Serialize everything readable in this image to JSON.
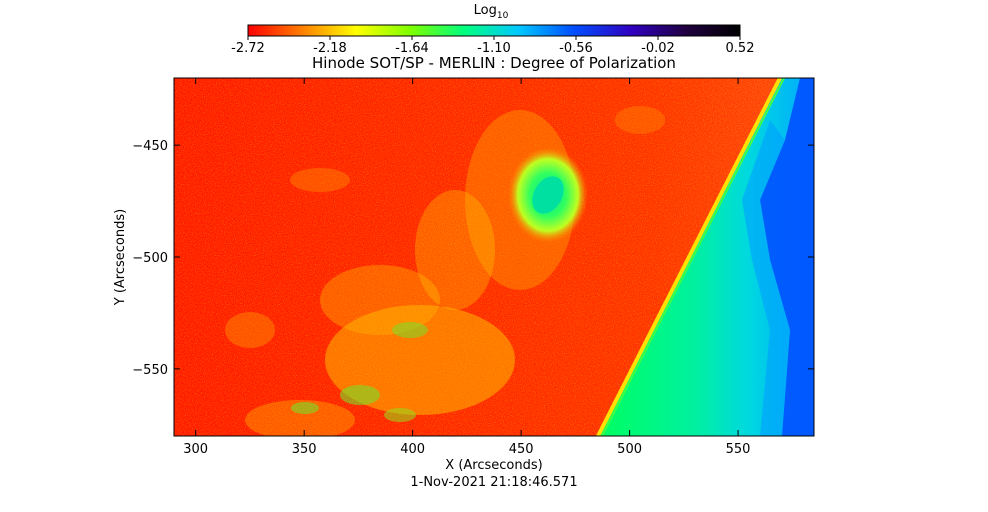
{
  "chart_data": {
    "type": "heatmap",
    "title": "Hinode SOT/SP - MERLIN : Degree of Polarization",
    "xlabel": "X (Arcseconds)",
    "ylabel": "Y (Arcseconds)",
    "timestamp": "1-Nov-2021 21:18:46.571",
    "xlim": [
      290,
      585
    ],
    "ylim": [
      -580,
      -420
    ],
    "x_ticks": [
      300,
      350,
      400,
      450,
      500,
      550
    ],
    "y_ticks": [
      -450,
      -500,
      -550
    ],
    "colorbar": {
      "label_base": "Log",
      "label_sub": "10",
      "range": [
        -2.72,
        0.52
      ],
      "tick_labels": [
        "-2.72",
        "-2.18",
        "-1.64",
        "-1.10",
        "-0.56",
        "-0.02",
        "0.52"
      ],
      "colormap": [
        "#ff0000",
        "#ff7f00",
        "#ffff00",
        "#7fff00",
        "#00ff7f",
        "#00c8ff",
        "#0050ff",
        "#3000c0",
        "#200040",
        "#000000"
      ]
    },
    "features": {
      "limb_line": [
        [
          483,
          -580
        ],
        [
          573,
          -420
        ]
      ],
      "sunspot": {
        "center": [
          460,
          -468
        ],
        "value": -1.1
      }
    }
  }
}
